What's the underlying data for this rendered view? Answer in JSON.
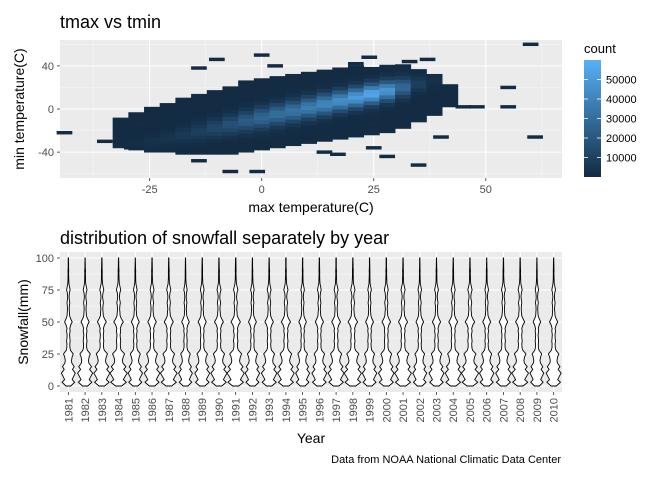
{
  "chart_data": [
    {
      "type": "heatmap",
      "title": "tmax vs tmin",
      "xlabel": "max temperature(C)",
      "ylabel": "min temperature(C)",
      "xlim": [
        -45,
        67
      ],
      "ylim": [
        -64,
        64
      ],
      "x_ticks": [
        -25,
        0,
        25,
        50
      ],
      "y_ticks": [
        -40,
        0,
        40
      ],
      "grid": true,
      "bin_width": 3.5,
      "bins_described": "hexbin-style 2D counts; dense diagonal band from about (-30,-40) to (40,20)",
      "legend": {
        "title": "count",
        "placement": "right",
        "range": [
          1,
          60000
        ],
        "ticks": [
          10000,
          20000,
          30000,
          40000,
          50000
        ],
        "low_color": "#132B43",
        "high_color": "#56B1F7"
      },
      "band": [
        {
          "x": -31.5,
          "lo": -36,
          "hi": -8,
          "peak": 800
        },
        {
          "x": -28,
          "lo": -38,
          "hi": -4,
          "peak": 1500
        },
        {
          "x": -24.5,
          "lo": -40,
          "hi": 0,
          "peak": 2500
        },
        {
          "x": -21,
          "lo": -40,
          "hi": 4,
          "peak": 4000
        },
        {
          "x": -17.5,
          "lo": -42,
          "hi": 8,
          "peak": 6000
        },
        {
          "x": -14,
          "lo": -42,
          "hi": 12,
          "peak": 9000
        },
        {
          "x": -10.5,
          "lo": -42,
          "hi": 16,
          "peak": 13000
        },
        {
          "x": -7,
          "lo": -42,
          "hi": 20,
          "peak": 17000
        },
        {
          "x": -3.5,
          "lo": -40,
          "hi": 24,
          "peak": 22000
        },
        {
          "x": 0,
          "lo": -38,
          "hi": 28,
          "peak": 27000
        },
        {
          "x": 3.5,
          "lo": -36,
          "hi": 30,
          "peak": 30000
        },
        {
          "x": 7,
          "lo": -34,
          "hi": 32,
          "peak": 33000
        },
        {
          "x": 10.5,
          "lo": -32,
          "hi": 34,
          "peak": 37000
        },
        {
          "x": 14,
          "lo": -30,
          "hi": 36,
          "peak": 41000
        },
        {
          "x": 17.5,
          "lo": -28,
          "hi": 36,
          "peak": 45000
        },
        {
          "x": 21,
          "lo": -26,
          "hi": 38,
          "peak": 50000
        },
        {
          "x": 24.5,
          "lo": -24,
          "hi": 38,
          "peak": 56000
        },
        {
          "x": 28,
          "lo": -22,
          "hi": 40,
          "peak": 48000
        },
        {
          "x": 31.5,
          "lo": -18,
          "hi": 40,
          "peak": 28000
        },
        {
          "x": 35,
          "lo": -12,
          "hi": 36,
          "peak": 9000
        },
        {
          "x": 38.5,
          "lo": -6,
          "hi": 30,
          "peak": 2500
        },
        {
          "x": 42,
          "lo": 2,
          "hi": 20,
          "peak": 600
        }
      ],
      "outliers": [
        [
          -44,
          -22
        ],
        [
          -35,
          -30
        ],
        [
          -29,
          -36
        ],
        [
          -14,
          -48
        ],
        [
          -14,
          38
        ],
        [
          -10,
          46
        ],
        [
          -7,
          -58
        ],
        [
          -1,
          -58
        ],
        [
          0,
          50
        ],
        [
          3,
          40
        ],
        [
          14,
          -40
        ],
        [
          17,
          -42
        ],
        [
          21,
          42
        ],
        [
          24,
          48
        ],
        [
          25,
          -36
        ],
        [
          28,
          -44
        ],
        [
          33,
          44
        ],
        [
          35,
          -52
        ],
        [
          37,
          46
        ],
        [
          40,
          -26
        ],
        [
          45,
          2
        ],
        [
          48,
          2
        ],
        [
          55,
          2
        ],
        [
          55,
          20
        ],
        [
          60,
          60
        ],
        [
          61,
          -26
        ]
      ]
    },
    {
      "type": "violin",
      "title": "distribution of snowfall separately by year",
      "xlabel": "Year",
      "ylabel": "Snowfall(mm)",
      "ylim": [
        0,
        100
      ],
      "y_ticks": [
        0,
        25,
        50,
        75,
        100
      ],
      "grid": true,
      "categories": [
        "1981",
        "1982",
        "1983",
        "1984",
        "1985",
        "1986",
        "1987",
        "1988",
        "1989",
        "1990",
        "1991",
        "1992",
        "1993",
        "1994",
        "1995",
        "1996",
        "1997",
        "1998",
        "1999",
        "2000",
        "2001",
        "2002",
        "2003",
        "2004",
        "2005",
        "2006",
        "2007",
        "2008",
        "2009",
        "2010"
      ],
      "density_profile": {
        "y": [
          0,
          3,
          5,
          8,
          10,
          13,
          15,
          18,
          20,
          23,
          25,
          28,
          30,
          33,
          35,
          38,
          40,
          43,
          45,
          48,
          50,
          53,
          55,
          58,
          60,
          63,
          65,
          68,
          70,
          73,
          75,
          78,
          80,
          83,
          85,
          88,
          90,
          93,
          95,
          98,
          100
        ],
        "relative_width": [
          0.35,
          0.9,
          0.55,
          0.8,
          1.0,
          0.6,
          0.85,
          0.5,
          0.45,
          0.55,
          0.7,
          0.3,
          0.22,
          0.2,
          0.25,
          0.2,
          0.18,
          0.25,
          0.2,
          0.35,
          0.55,
          0.3,
          0.18,
          0.15,
          0.12,
          0.15,
          0.2,
          0.12,
          0.1,
          0.15,
          0.25,
          0.15,
          0.08,
          0.06,
          0.05,
          0.04,
          0.05,
          0.03,
          0.03,
          0.02,
          0.02
        ]
      }
    }
  ],
  "caption": "Data from NOAA National Climatic Data Center"
}
